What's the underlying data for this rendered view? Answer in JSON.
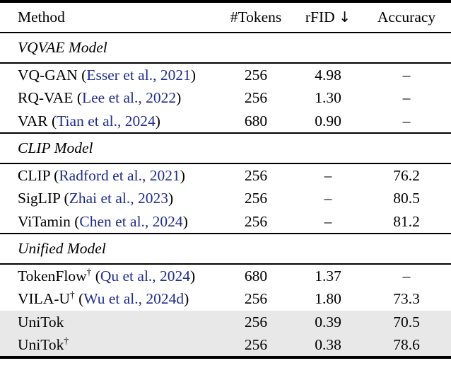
{
  "colors": {
    "citation_blue": "#1f2d8c",
    "highlight_gray": "#e8e8e8",
    "rule_black": "#000000"
  },
  "punct": {
    "open": "(",
    "close": ")",
    "space": " "
  },
  "table": {
    "header": {
      "method": "Method",
      "tokens": "#Tokens",
      "rfid": "rFID",
      "rfid_arrow": "↓",
      "accuracy": "Accuracy"
    },
    "sections": [
      {
        "title": "VQVAE Model",
        "rows": [
          {
            "name": "VQ-GAN",
            "sup": "",
            "cite": "Esser et al., 2021",
            "tokens": "256",
            "rfid": "4.98",
            "accuracy": "–"
          },
          {
            "name": "RQ-VAE",
            "sup": "",
            "cite": "Lee et al., 2022",
            "tokens": "256",
            "rfid": "1.30",
            "accuracy": "–"
          },
          {
            "name": "VAR",
            "sup": "",
            "cite": "Tian et al., 2024",
            "tokens": "680",
            "rfid": "0.90",
            "accuracy": "–"
          }
        ]
      },
      {
        "title": "CLIP Model",
        "rows": [
          {
            "name": "CLIP",
            "sup": "",
            "cite": "Radford et al., 2021",
            "tokens": "256",
            "rfid": "–",
            "accuracy": "76.2"
          },
          {
            "name": "SigLIP",
            "sup": "",
            "cite": "Zhai et al., 2023",
            "tokens": "256",
            "rfid": "–",
            "accuracy": "80.5"
          },
          {
            "name": "ViTamin",
            "sup": "",
            "cite": "Chen et al., 2024",
            "tokens": "256",
            "rfid": "–",
            "accuracy": "81.2"
          }
        ]
      },
      {
        "title": "Unified Model",
        "rows": [
          {
            "name": "TokenFlow",
            "sup": "†",
            "cite": "Qu et al., 2024",
            "tokens": "680",
            "rfid": "1.37",
            "accuracy": "–"
          },
          {
            "name": "VILA-U",
            "sup": "†",
            "cite": "Wu et al., 2024d",
            "tokens": "256",
            "rfid": "1.80",
            "accuracy": "73.3"
          },
          {
            "name": "UniTok",
            "sup": "",
            "cite": "",
            "tokens": "256",
            "rfid": "0.39",
            "accuracy": "70.5",
            "highlight": true
          },
          {
            "name": "UniTok",
            "sup": "†",
            "cite": "",
            "tokens": "256",
            "rfid": "0.38",
            "accuracy": "78.6",
            "highlight": true
          }
        ]
      }
    ]
  }
}
